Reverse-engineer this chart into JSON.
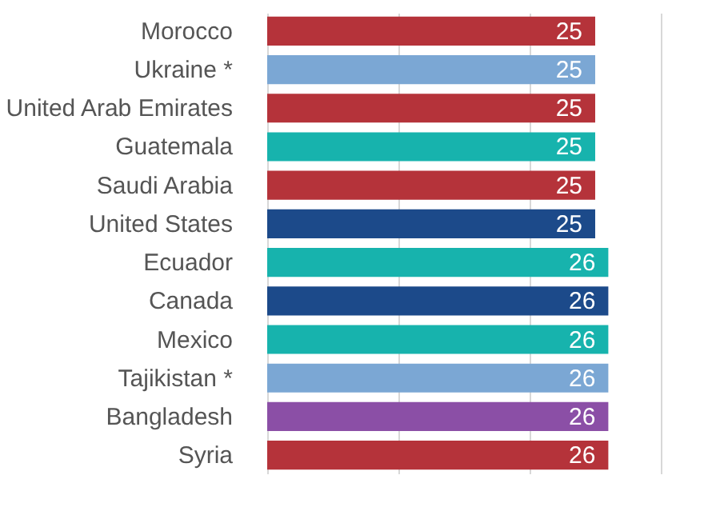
{
  "chart_data": {
    "type": "bar",
    "orientation": "horizontal",
    "categories": [
      "Morocco",
      "Ukraine *",
      "United Arab Emirates",
      "Guatemala",
      "Saudi Arabia",
      "United States",
      "Ecuador",
      "Canada",
      "Mexico",
      "Tajikistan *",
      "Bangladesh",
      "Syria"
    ],
    "values": [
      25,
      25,
      25,
      25,
      25,
      25,
      26,
      26,
      26,
      26,
      26,
      26
    ],
    "colors": [
      "#b5333a",
      "#7ba7d4",
      "#b5333a",
      "#17b3ad",
      "#b5333a",
      "#1c4a8a",
      "#17b3ad",
      "#1c4a8a",
      "#17b3ad",
      "#7ba7d4",
      "#8b4fa6",
      "#b5333a"
    ],
    "data_labels": true,
    "xlim": [
      0,
      30
    ],
    "xticks": [
      {
        "value": 0,
        "label": null
      },
      {
        "value": 10,
        "label": null
      },
      {
        "value": 20,
        "label": null
      },
      {
        "value": 30,
        "label": null
      }
    ],
    "tick_labels": "y",
    "grid": "x"
  }
}
